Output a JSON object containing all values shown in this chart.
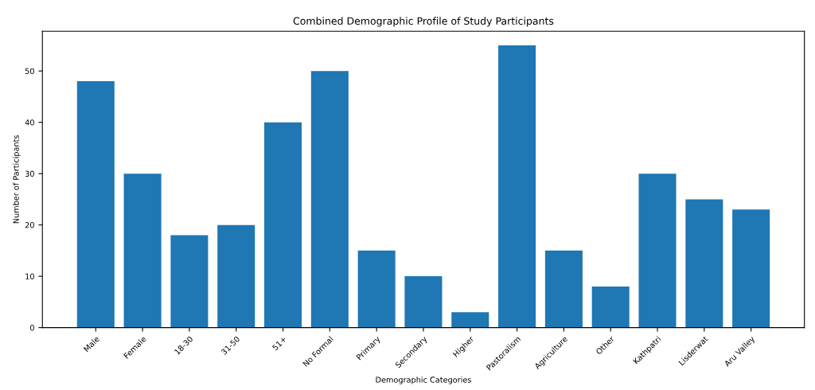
{
  "chart_data": {
    "type": "bar",
    "title": "Combined Demographic Profile of Study Participants",
    "xlabel": "Demographic Categories",
    "ylabel": "Number of Participants",
    "categories": [
      "Male",
      "Female",
      "18-30",
      "31-50",
      "51+",
      "No Formal",
      "Primary",
      "Secondary",
      "Higher",
      "Pastoralism",
      "Agriculture",
      "Other",
      "Kathpatri",
      "Lisderwat",
      "Aru Valley"
    ],
    "values": [
      48,
      30,
      18,
      20,
      40,
      50,
      15,
      10,
      3,
      55,
      15,
      8,
      30,
      25,
      23
    ],
    "color": "#1f77b4",
    "ylim": [
      0,
      57.75
    ],
    "yticks": [
      0,
      10,
      20,
      30,
      40,
      50
    ],
    "grid": false
  }
}
